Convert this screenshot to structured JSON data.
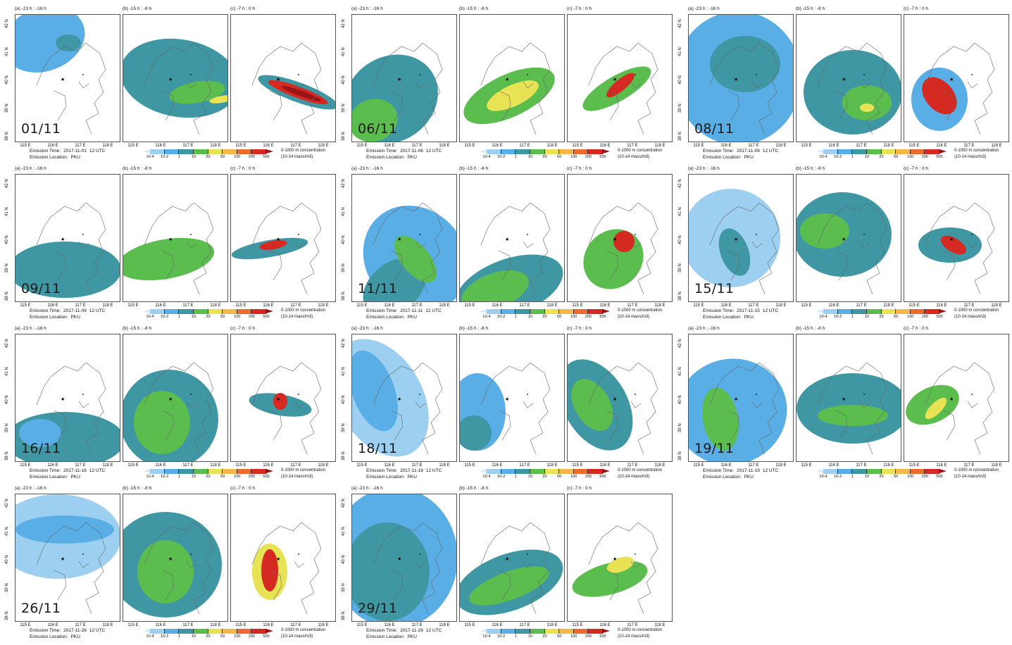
{
  "panel_titles": [
    "(a) -23 h : -16 h",
    "(b) -15 h : -8 h",
    "(c) -7 h : 0 h"
  ],
  "y_ticks": [
    "42 N",
    "41 N",
    "40 N",
    "39 N",
    "38 N"
  ],
  "x_ticks": [
    "115 E",
    "116 E",
    "117 E",
    "118 E"
  ],
  "legend": {
    "labels": [
      "10-4",
      "10-2",
      "1",
      "10",
      "20",
      "50",
      "100",
      "200",
      "500"
    ],
    "colors": [
      "#d6ecf8",
      "#9dd0f0",
      "#5aaee6",
      "#3f97a3",
      "#5bbd4e",
      "#e8e255",
      "#f4b84a",
      "#ee6a2c",
      "#d42a22",
      "#9c1418"
    ],
    "title": "0-1000 m concentration",
    "unit": "(10-14 mass/m3)"
  },
  "info_labels": {
    "time": "Emission Time:",
    "location": "Emission Location:",
    "location_value": "PKU",
    "utc": "12 UTC"
  },
  "cases": [
    {
      "date": "01/11",
      "emission_date": "2017-11-01"
    },
    {
      "date": "06/11",
      "emission_date": "2017-11-06"
    },
    {
      "date": "08/11",
      "emission_date": "2017-11-08"
    },
    {
      "date": "09/11",
      "emission_date": "2017-11-09"
    },
    {
      "date": "11/11",
      "emission_date": "2017-11-11"
    },
    {
      "date": "15/11",
      "emission_date": "2017-11-15"
    },
    {
      "date": "16/11",
      "emission_date": "2017-11-16"
    },
    {
      "date": "18/11",
      "emission_date": "2017-11-18"
    },
    {
      "date": "19/11",
      "emission_date": "2017-11-19"
    },
    {
      "date": "26/11",
      "emission_date": "2017-11-26"
    },
    {
      "date": "29/11",
      "emission_date": "2017-11-29"
    }
  ]
}
